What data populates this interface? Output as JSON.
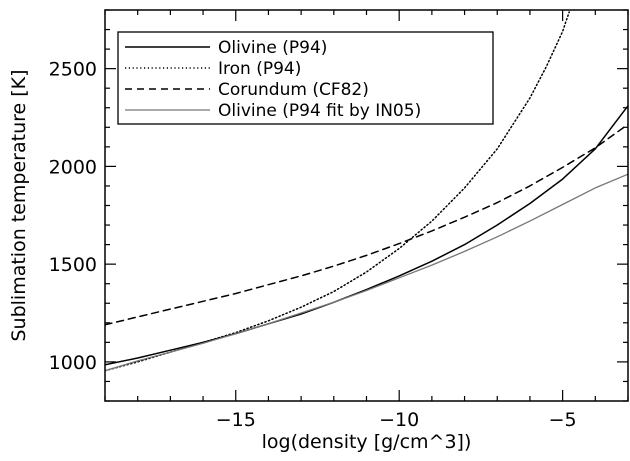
{
  "chart_data": {
    "type": "line",
    "title": "",
    "xlabel": "log(density [g/cm^3])",
    "ylabel": "Sublimation temperature [K]",
    "xlim": [
      -19,
      -3
    ],
    "ylim": [
      800,
      2800
    ],
    "xticks": [
      -15,
      -10,
      -5
    ],
    "yticks": [
      1000,
      1500,
      2000,
      2500
    ],
    "grid": false,
    "legend_position": "top-left",
    "series": [
      {
        "name": "Olivine (P94)",
        "style": "solid",
        "color": "#000000",
        "x": [
          -19,
          -18,
          -17,
          -16,
          -15,
          -14,
          -13,
          -12,
          -11,
          -10,
          -9,
          -8,
          -7,
          -6,
          -5,
          -4,
          -3
        ],
        "y": [
          985,
          1020,
          1060,
          1100,
          1145,
          1195,
          1245,
          1305,
          1370,
          1440,
          1515,
          1600,
          1700,
          1810,
          1935,
          2090,
          2310
        ]
      },
      {
        "name": "Iron (P94)",
        "style": "dotted",
        "color": "#000000",
        "x": [
          -19,
          -18,
          -17,
          -16,
          -15,
          -14,
          -13,
          -12,
          -11,
          -10,
          -9,
          -8,
          -7,
          -6,
          -5.5,
          -5.0,
          -4.8
        ],
        "y": [
          955,
          1000,
          1050,
          1100,
          1150,
          1210,
          1280,
          1360,
          1460,
          1580,
          1720,
          1890,
          2090,
          2350,
          2510,
          2690,
          2790
        ]
      },
      {
        "name": "Corundum (CF82)",
        "style": "dashed",
        "color": "#000000",
        "x": [
          -19,
          -18,
          -17,
          -16,
          -15,
          -14,
          -13,
          -12,
          -11,
          -10,
          -9,
          -8,
          -7,
          -6,
          -5,
          -4,
          -3
        ],
        "y": [
          1190,
          1230,
          1270,
          1310,
          1350,
          1395,
          1440,
          1490,
          1545,
          1605,
          1670,
          1740,
          1815,
          1900,
          1995,
          2095,
          2215
        ]
      },
      {
        "name": "Olivine (P94 fit by IN05)",
        "style": "solid",
        "color": "#777777",
        "x": [
          -19,
          -18,
          -17,
          -16,
          -15,
          -14,
          -13,
          -12,
          -11,
          -10,
          -9,
          -8,
          -7,
          -6,
          -5,
          -4,
          -3
        ],
        "y": [
          955,
          1005,
          1050,
          1095,
          1145,
          1195,
          1250,
          1305,
          1365,
          1430,
          1495,
          1565,
          1640,
          1720,
          1805,
          1890,
          1960
        ]
      }
    ]
  }
}
